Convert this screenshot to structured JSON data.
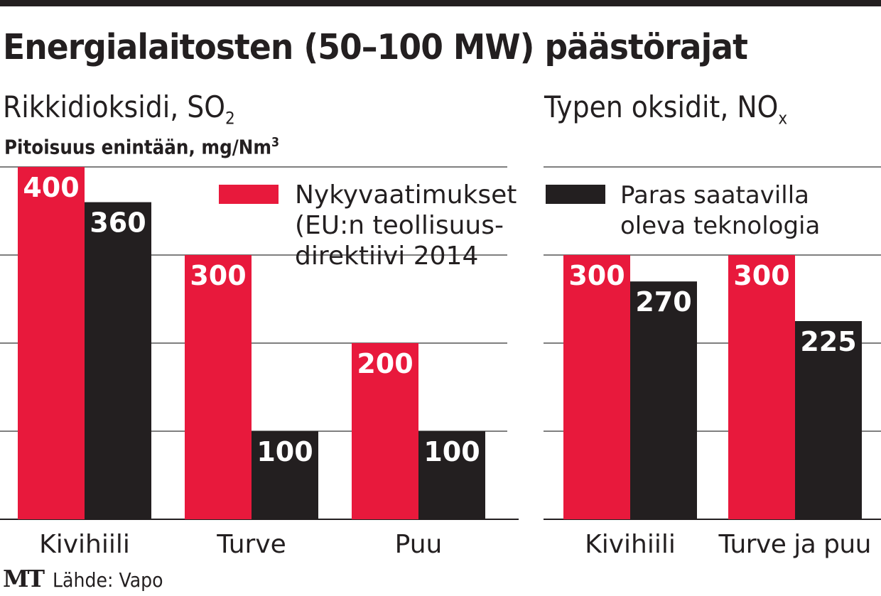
{
  "title": "Energialaitosten (50–100 MW) päästörajat",
  "footer": {
    "logo": "MT",
    "source": "Lähde: Vapo"
  },
  "colors": {
    "current": "#e8193c",
    "bat": "#231f20",
    "grid": "#555555"
  },
  "chart_data": [
    {
      "type": "bar",
      "title": "Rikkidioksidi, SO",
      "title_sub": "2",
      "ylabel": "Pitoisuus enintään, mg/Nm",
      "ylabel_sup": "3",
      "categories": [
        "Kivihiili",
        "Turve",
        "Puu"
      ],
      "ylim": [
        0,
        400
      ],
      "gridlines": [
        0,
        100,
        200,
        300,
        400
      ],
      "series": [
        {
          "name": "Nykyvaatimukset (EU:n teollisuus-direktiivi 2014",
          "legend_lines": [
            "Nykyvaatimukset",
            "(EU:n teollisuus-",
            "direktiivi 2014"
          ],
          "values": [
            400,
            300,
            200
          ]
        },
        {
          "name": "Paras saatavilla oleva teknologia",
          "values": [
            360,
            100,
            100
          ]
        }
      ]
    },
    {
      "type": "bar",
      "title": "Typen oksidit, NO",
      "title_sub": "x",
      "categories": [
        "Kivihiili",
        "Turve ja puu"
      ],
      "ylim": [
        0,
        400
      ],
      "gridlines": [
        0,
        100,
        200,
        300,
        400
      ],
      "series": [
        {
          "name": "Nykyvaatimukset",
          "values": [
            300,
            300
          ]
        },
        {
          "name": "Paras saatavilla oleva teknologia",
          "legend_lines": [
            "Paras saatavilla",
            "oleva teknologia"
          ],
          "values": [
            270,
            225
          ]
        }
      ]
    }
  ]
}
